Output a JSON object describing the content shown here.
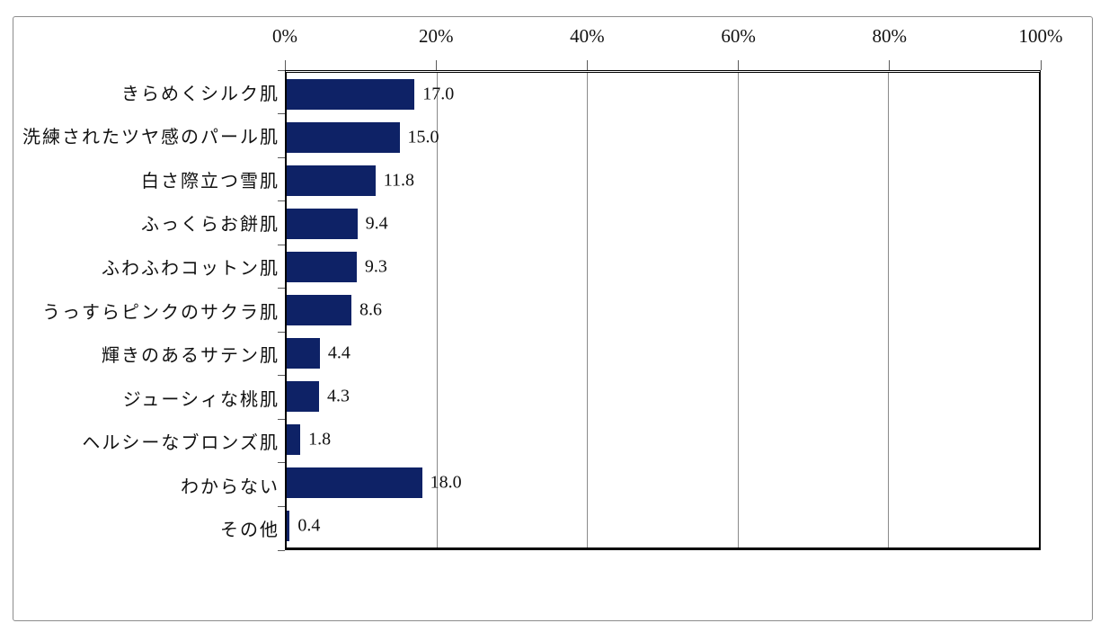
{
  "chart_data": {
    "type": "bar",
    "orientation": "horizontal",
    "title": "",
    "xlabel": "",
    "ylabel": "",
    "xlim": [
      0,
      100
    ],
    "x_tick_labels": [
      "0%",
      "20%",
      "40%",
      "60%",
      "80%",
      "100%"
    ],
    "x_tick_values": [
      0,
      20,
      40,
      60,
      80,
      100
    ],
    "grid": "vertical",
    "legend": "none",
    "categories": [
      "きらめくシルク肌",
      "洗練されたツヤ感のパール肌",
      "白さ際立つ雪肌",
      "ふっくらお餅肌",
      "ふわふわコットン肌",
      "うっすらピンクのサクラ肌",
      "輝きのあるサテン肌",
      "ジューシィな桃肌",
      "ヘルシーなブロンズ肌",
      "わからない",
      "その他"
    ],
    "values": [
      17.0,
      15.0,
      11.8,
      9.4,
      9.3,
      8.6,
      4.4,
      4.3,
      1.8,
      18.0,
      0.4
    ],
    "value_labels": [
      "17.0",
      "15.0",
      "11.8",
      "9.4",
      "9.3",
      "8.6",
      "4.4",
      "4.3",
      "1.8",
      "18.0",
      "0.4"
    ],
    "colors": {
      "bar": "#0e2266",
      "gridline": "#8a8a8a",
      "axis": "#000000",
      "frame_border": "#8c8c8c",
      "text": "#111111",
      "background": "#ffffff"
    }
  }
}
